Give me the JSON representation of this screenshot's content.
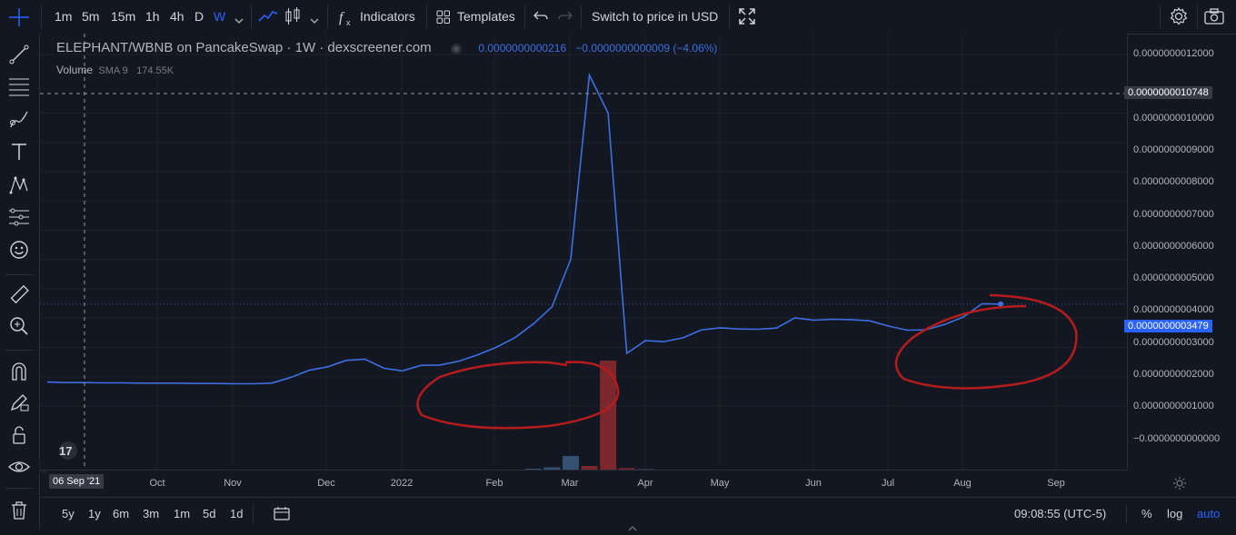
{
  "toolbar": {
    "intervals": [
      "1m",
      "5m",
      "15m",
      "1h",
      "4h",
      "D",
      "W"
    ],
    "active_interval": "W",
    "indicators_label": "Indicators",
    "templates_label": "Templates",
    "switch_price_label": "Switch to price in USD"
  },
  "legend": {
    "symbol": "ELEPHANT/WBNB on PancakeSwap · 1W · dexscreener.com",
    "price": "0.0000000000216",
    "change": "−0.0000000000009 (−4.06%)",
    "volume_label": "Volume",
    "volume_sma": "SMA 9",
    "volume_value": "174.55K"
  },
  "price_scale": {
    "labels": [
      "0.0000000012000",
      "0.0000000010000",
      "0.0000000009000",
      "0.0000000008000",
      "0.0000000007000",
      "0.0000000006000",
      "0.0000000005000",
      "0.0000000004000",
      "0.0000000003000",
      "0.0000000002000",
      "0.0000000001000",
      "−0.0000000000000"
    ],
    "crosshair_label": "0.0000000010748",
    "last_price_label": "0.0000000003479"
  },
  "time_scale": {
    "crosshair_date": "06 Sep '21",
    "ticks": [
      "Oct",
      "Nov",
      "Dec",
      "2022",
      "Feb",
      "Mar",
      "Apr",
      "May",
      "Jun",
      "Jul",
      "Aug",
      "Sep"
    ]
  },
  "bottombar": {
    "ranges": [
      "5y",
      "1y",
      "6m",
      "3m",
      "1m",
      "5d",
      "1d"
    ],
    "clock": "09:08:55 (UTC-5)",
    "percent_label": "%",
    "log_label": "log",
    "auto_label": "auto"
  },
  "colors": {
    "line": "#3d6fe0",
    "annotation": "#b71c1c",
    "volume_up": "#3d5a80",
    "volume_down": "#8e2a2e",
    "background": "#131722"
  },
  "chart_data": {
    "type": "line",
    "x": [
      "2021-09-06",
      "2021-09-13",
      "2021-09-20",
      "2021-09-27",
      "2021-10-04",
      "2021-10-11",
      "2021-10-18",
      "2021-10-25",
      "2021-11-01",
      "2021-11-08",
      "2021-11-15",
      "2021-11-22",
      "2021-11-29",
      "2021-12-06",
      "2021-12-13",
      "2021-12-20",
      "2021-12-27",
      "2022-01-03",
      "2022-01-10",
      "2022-01-17",
      "2022-01-24",
      "2022-01-31",
      "2022-02-07",
      "2022-02-14",
      "2022-02-21",
      "2022-02-28",
      "2022-03-07",
      "2022-03-14",
      "2022-03-21",
      "2022-03-28",
      "2022-04-04",
      "2022-04-11",
      "2022-04-18",
      "2022-04-25",
      "2022-05-02",
      "2022-05-09",
      "2022-05-16",
      "2022-05-23",
      "2022-05-30",
      "2022-06-06",
      "2022-06-13",
      "2022-06-20",
      "2022-06-27",
      "2022-07-04",
      "2022-07-11",
      "2022-07-18",
      "2022-07-25",
      "2022-08-01",
      "2022-08-08",
      "2022-08-15",
      "2022-08-22",
      "2022-08-29"
    ],
    "values": [
      8.2e-11,
      8e-11,
      8e-11,
      7.9e-11,
      7.9e-11,
      7.8e-11,
      7.8e-11,
      7.8e-11,
      7.7e-11,
      7.7e-11,
      7.6e-11,
      7.6e-11,
      7.8e-11,
      9.72e-11,
      1.22e-10,
      1.34e-10,
      1.56e-10,
      1.6e-10,
      1.29e-10,
      1.2e-10,
      1.39e-10,
      1.4e-10,
      1.53e-10,
      1.74e-10,
      2e-10,
      2.33e-10,
      2.8e-10,
      3.39e-10,
      5.01e-10,
      1.13e-09,
      1e-09,
      1.8e-10,
      2.23e-10,
      2.2e-10,
      2.33e-10,
      2.6e-10,
      2.67e-10,
      2.63e-10,
      2.62e-10,
      2.66e-10,
      3.01e-10,
      2.93e-10,
      2.96e-10,
      2.95e-10,
      2.91e-10,
      2.73e-10,
      2.59e-10,
      2.6e-10,
      2.78e-10,
      3.04e-10,
      3.49e-10,
      3.479e-10
    ],
    "volume": [
      0,
      0,
      0,
      0,
      0,
      0,
      0,
      0,
      0,
      0,
      0,
      0,
      0,
      0,
      0,
      0,
      0,
      0,
      0,
      0,
      0,
      0,
      0,
      0,
      0,
      0,
      2,
      5,
      30,
      8,
      240,
      3,
      1,
      0,
      0,
      0,
      0,
      0,
      0,
      0,
      0,
      0,
      0,
      0,
      0,
      0,
      0,
      0,
      0,
      0,
      0,
      0
    ],
    "ylim": [
      -1e-11,
      1.22e-09
    ],
    "ylabel": "",
    "xlabel": ""
  }
}
